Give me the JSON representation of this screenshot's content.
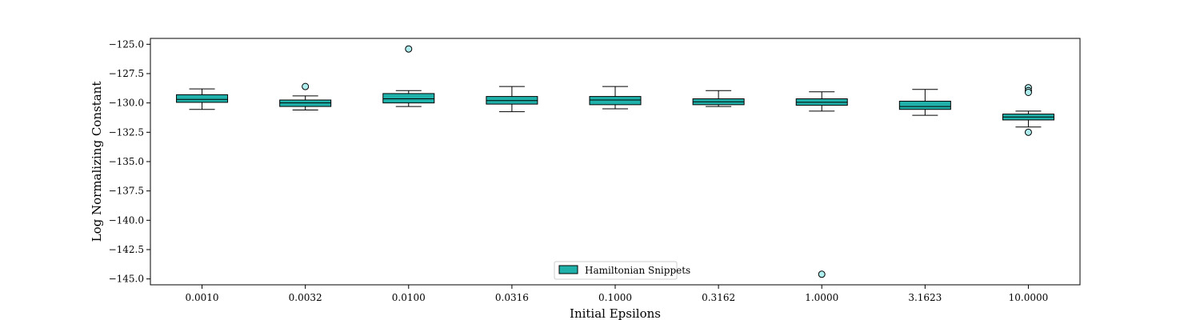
{
  "chart_data": {
    "type": "boxplot",
    "xlabel": "Initial Epsilons",
    "ylabel": "Log Normalizing Constant",
    "ylim": [
      -145.5,
      -124.5
    ],
    "yticks": [
      -125.0,
      -127.5,
      -130.0,
      -132.5,
      -135.0,
      -137.5,
      -140.0,
      -142.5,
      -145.0
    ],
    "ytick_labels": [
      "−125.0",
      "−127.5",
      "−130.0",
      "−132.5",
      "−135.0",
      "−137.5",
      "−140.0",
      "−142.5",
      "−145.0"
    ],
    "grid": false,
    "legend": {
      "position": "bottom-center",
      "entries": [
        {
          "label": "Hamiltonian Snippets",
          "color": "#20b2aa"
        }
      ]
    },
    "series": [
      {
        "name": "Hamiltonian Snippets",
        "color": "#20b2aa",
        "boxes": [
          {
            "category": "0.0010",
            "whisker_low": -130.55,
            "q1": -129.95,
            "median": -129.7,
            "q3": -129.3,
            "whisker_high": -128.8,
            "outliers": []
          },
          {
            "category": "0.0032",
            "whisker_low": -130.6,
            "q1": -130.3,
            "median": -130.0,
            "q3": -129.75,
            "whisker_high": -129.4,
            "outliers": [
              -128.6
            ]
          },
          {
            "category": "0.0100",
            "whisker_low": -130.3,
            "q1": -130.0,
            "median": -129.65,
            "q3": -129.2,
            "whisker_high": -128.95,
            "outliers": [
              -125.4
            ]
          },
          {
            "category": "0.0316",
            "whisker_low": -130.75,
            "q1": -130.1,
            "median": -129.8,
            "q3": -129.45,
            "whisker_high": -128.6,
            "outliers": []
          },
          {
            "category": "0.1000",
            "whisker_low": -130.5,
            "q1": -130.15,
            "median": -129.75,
            "q3": -129.45,
            "whisker_high": -128.6,
            "outliers": []
          },
          {
            "category": "0.3162",
            "whisker_low": -130.3,
            "q1": -130.15,
            "median": -129.9,
            "q3": -129.65,
            "whisker_high": -128.95,
            "outliers": []
          },
          {
            "category": "1.0000",
            "whisker_low": -130.7,
            "q1": -130.2,
            "median": -129.95,
            "q3": -129.65,
            "whisker_high": -129.05,
            "outliers": [
              -144.6
            ]
          },
          {
            "category": "3.1623",
            "whisker_low": -131.05,
            "q1": -130.55,
            "median": -130.3,
            "q3": -129.85,
            "whisker_high": -128.85,
            "outliers": []
          },
          {
            "category": "10.0000",
            "whisker_low": -132.05,
            "q1": -131.45,
            "median": -131.2,
            "q3": -130.95,
            "whisker_high": -130.7,
            "outliers": [
              -128.7,
              -128.95,
              -129.1,
              -132.5
            ]
          }
        ]
      }
    ]
  }
}
